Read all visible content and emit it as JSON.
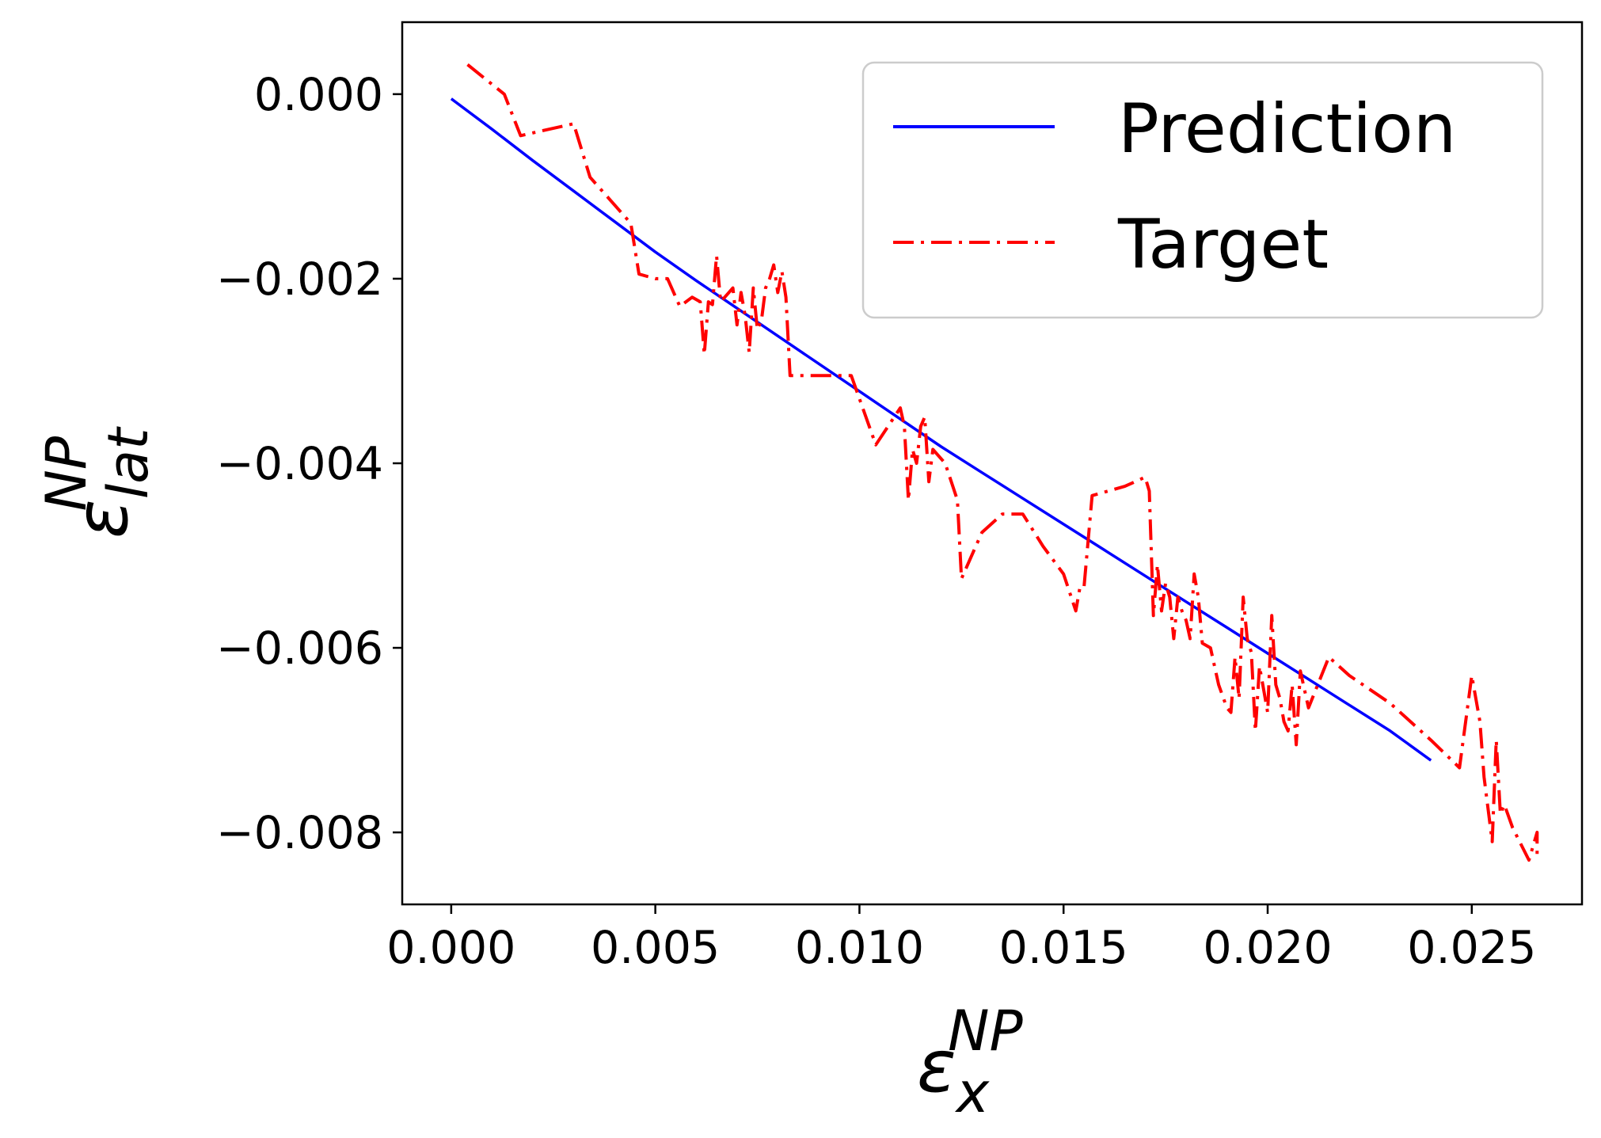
{
  "chart_data": {
    "type": "line",
    "xlabel": {
      "base": "ε",
      "sub": "x",
      "sup": "NP"
    },
    "ylabel": {
      "base": "ε",
      "sub": "lat",
      "sup": "NP"
    },
    "xlim": [
      -0.0012,
      0.0277
    ],
    "ylim": [
      -0.00878,
      0.00078
    ],
    "xticks": [
      0.0,
      0.005,
      0.01,
      0.015,
      0.02,
      0.025
    ],
    "xtick_labels": [
      "0.000",
      "0.005",
      "0.010",
      "0.015",
      "0.020",
      "0.025"
    ],
    "yticks": [
      0.0,
      -0.002,
      -0.004,
      -0.006,
      -0.008
    ],
    "ytick_labels": [
      "0.000",
      "−0.002",
      "−0.004",
      "−0.006",
      "−0.008"
    ],
    "grid": false,
    "legend_position": "top-right",
    "series": [
      {
        "name": "Prediction",
        "color": "#0000ff",
        "style": "solid",
        "x": [
          0.0,
          0.001,
          0.002,
          0.003,
          0.004,
          0.005,
          0.006,
          0.007,
          0.008,
          0.009,
          0.01,
          0.011,
          0.012,
          0.013,
          0.014,
          0.015,
          0.016,
          0.017,
          0.018,
          0.019,
          0.02,
          0.021,
          0.022,
          0.023,
          0.024
        ],
        "y": [
          -5e-05,
          -0.00038,
          -0.00072,
          -0.00105,
          -0.00138,
          -0.00171,
          -0.00202,
          -0.00232,
          -0.00262,
          -0.00292,
          -0.00322,
          -0.00352,
          -0.00382,
          -0.0041,
          -0.00438,
          -0.00466,
          -0.00494,
          -0.00522,
          -0.0055,
          -0.00578,
          -0.00606,
          -0.00634,
          -0.00662,
          -0.0069,
          -0.00722
        ]
      },
      {
        "name": "Target",
        "color": "#ff0000",
        "style": "dashdot",
        "x": [
          0.0004,
          0.0013,
          0.0017,
          0.003,
          0.0034,
          0.0044,
          0.0046,
          0.005,
          0.0053,
          0.0056,
          0.0059,
          0.0061,
          0.0062,
          0.0063,
          0.0064,
          0.0065,
          0.0066,
          0.0067,
          0.0068,
          0.0069,
          0.007,
          0.0071,
          0.0072,
          0.0073,
          0.0074,
          0.0075,
          0.0076,
          0.0077,
          0.0078,
          0.0079,
          0.008,
          0.0081,
          0.0082,
          0.0083,
          0.0086,
          0.009,
          0.0094,
          0.0098,
          0.0104,
          0.011,
          0.0111,
          0.0112,
          0.0113,
          0.0114,
          0.0115,
          0.0116,
          0.0117,
          0.0118,
          0.0121,
          0.0124,
          0.0125,
          0.013,
          0.0135,
          0.014,
          0.0145,
          0.015,
          0.0153,
          0.0154,
          0.0155,
          0.0157,
          0.0165,
          0.017,
          0.0171,
          0.0172,
          0.0173,
          0.0174,
          0.0175,
          0.0176,
          0.0177,
          0.0178,
          0.0179,
          0.018,
          0.0181,
          0.0182,
          0.0183,
          0.0184,
          0.0186,
          0.0188,
          0.019,
          0.0191,
          0.0192,
          0.0193,
          0.0194,
          0.0195,
          0.0196,
          0.0197,
          0.0198,
          0.0199,
          0.02,
          0.0201,
          0.0202,
          0.0203,
          0.0204,
          0.0205,
          0.0206,
          0.0207,
          0.0208,
          0.021,
          0.0215,
          0.022,
          0.023,
          0.024,
          0.0247,
          0.025,
          0.0252,
          0.0253,
          0.0255,
          0.0256,
          0.0257,
          0.0258,
          0.026,
          0.0264,
          0.0266,
          0.0266
        ],
        "y": [
          0.00032,
          0.0,
          -0.00045,
          -0.00032,
          -0.0009,
          -0.0014,
          -0.00195,
          -0.002,
          -0.002,
          -0.0023,
          -0.0022,
          -0.00225,
          -0.00282,
          -0.00225,
          -0.00228,
          -0.00175,
          -0.00225,
          -0.0022,
          -0.00215,
          -0.0021,
          -0.0025,
          -0.00215,
          -0.0024,
          -0.0028,
          -0.0021,
          -0.00255,
          -0.00245,
          -0.0021,
          -0.002,
          -0.00185,
          -0.00215,
          -0.00192,
          -0.0022,
          -0.00305,
          -0.00305,
          -0.00305,
          -0.00305,
          -0.00305,
          -0.0038,
          -0.0034,
          -0.0036,
          -0.0044,
          -0.00385,
          -0.004,
          -0.0036,
          -0.0035,
          -0.0042,
          -0.00385,
          -0.004,
          -0.0044,
          -0.00525,
          -0.00475,
          -0.00455,
          -0.00455,
          -0.0049,
          -0.0052,
          -0.0056,
          -0.00535,
          -0.00535,
          -0.00435,
          -0.00425,
          -0.00415,
          -0.0043,
          -0.00565,
          -0.0051,
          -0.0056,
          -0.0053,
          -0.00545,
          -0.0059,
          -0.00545,
          -0.0056,
          -0.0057,
          -0.0059,
          -0.0052,
          -0.00545,
          -0.00595,
          -0.006,
          -0.0064,
          -0.00665,
          -0.0067,
          -0.0061,
          -0.00655,
          -0.00545,
          -0.0059,
          -0.00605,
          -0.0069,
          -0.0062,
          -0.00645,
          -0.0067,
          -0.00565,
          -0.0064,
          -0.00655,
          -0.0068,
          -0.0069,
          -0.0064,
          -0.00705,
          -0.00625,
          -0.00665,
          -0.0061,
          -0.0063,
          -0.0066,
          -0.007,
          -0.0073,
          -0.0063,
          -0.0068,
          -0.0074,
          -0.0081,
          -0.007,
          -0.0078,
          -0.0077,
          -0.00795,
          -0.0083,
          -0.008,
          -0.0083
        ]
      }
    ]
  }
}
